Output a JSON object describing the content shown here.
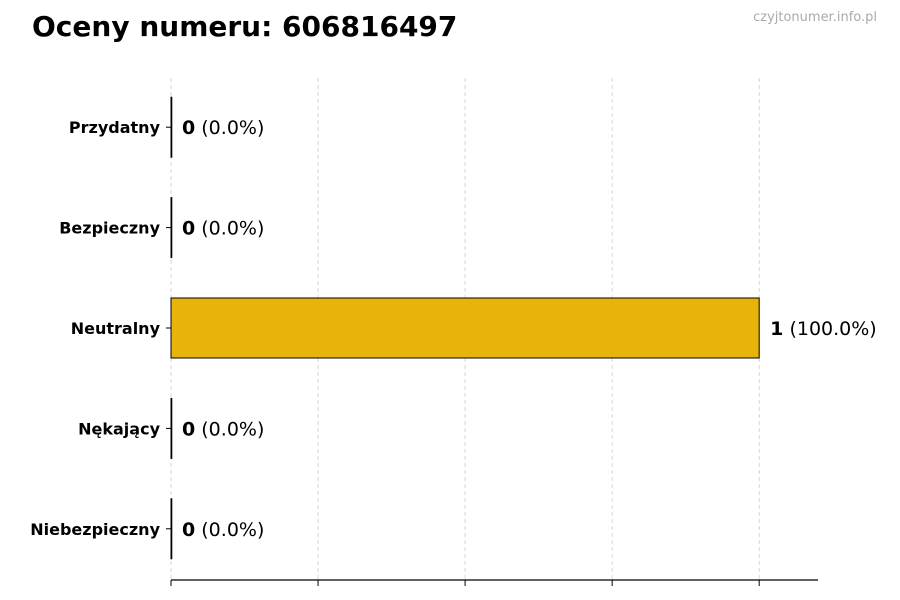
{
  "title": "Oceny numeru: 606816497",
  "watermark": "czyjtonumer.info.pl",
  "chart_data": {
    "type": "bar",
    "orientation": "horizontal",
    "title": "Oceny numeru: 606816497",
    "categories": [
      "Przydatny",
      "Bezpieczny",
      "Neutralny",
      "Nękający",
      "Niebezpieczny"
    ],
    "values": [
      0,
      0,
      1,
      0,
      0
    ],
    "labels": [
      {
        "count": "0",
        "pct": "(0.0%)"
      },
      {
        "count": "0",
        "pct": "(0.0%)"
      },
      {
        "count": "1",
        "pct": "(100.0%)"
      },
      {
        "count": "0",
        "pct": "(0.0%)"
      },
      {
        "count": "0",
        "pct": "(0.0%)"
      }
    ],
    "xlim": [
      0,
      1.1
    ],
    "xticks": [
      0,
      0.25,
      0.5,
      0.75,
      1.0
    ],
    "xtick_labels_shown": false,
    "grid": "x dashed",
    "bar_color": "#E8B40A",
    "xlabel": "",
    "ylabel": ""
  }
}
